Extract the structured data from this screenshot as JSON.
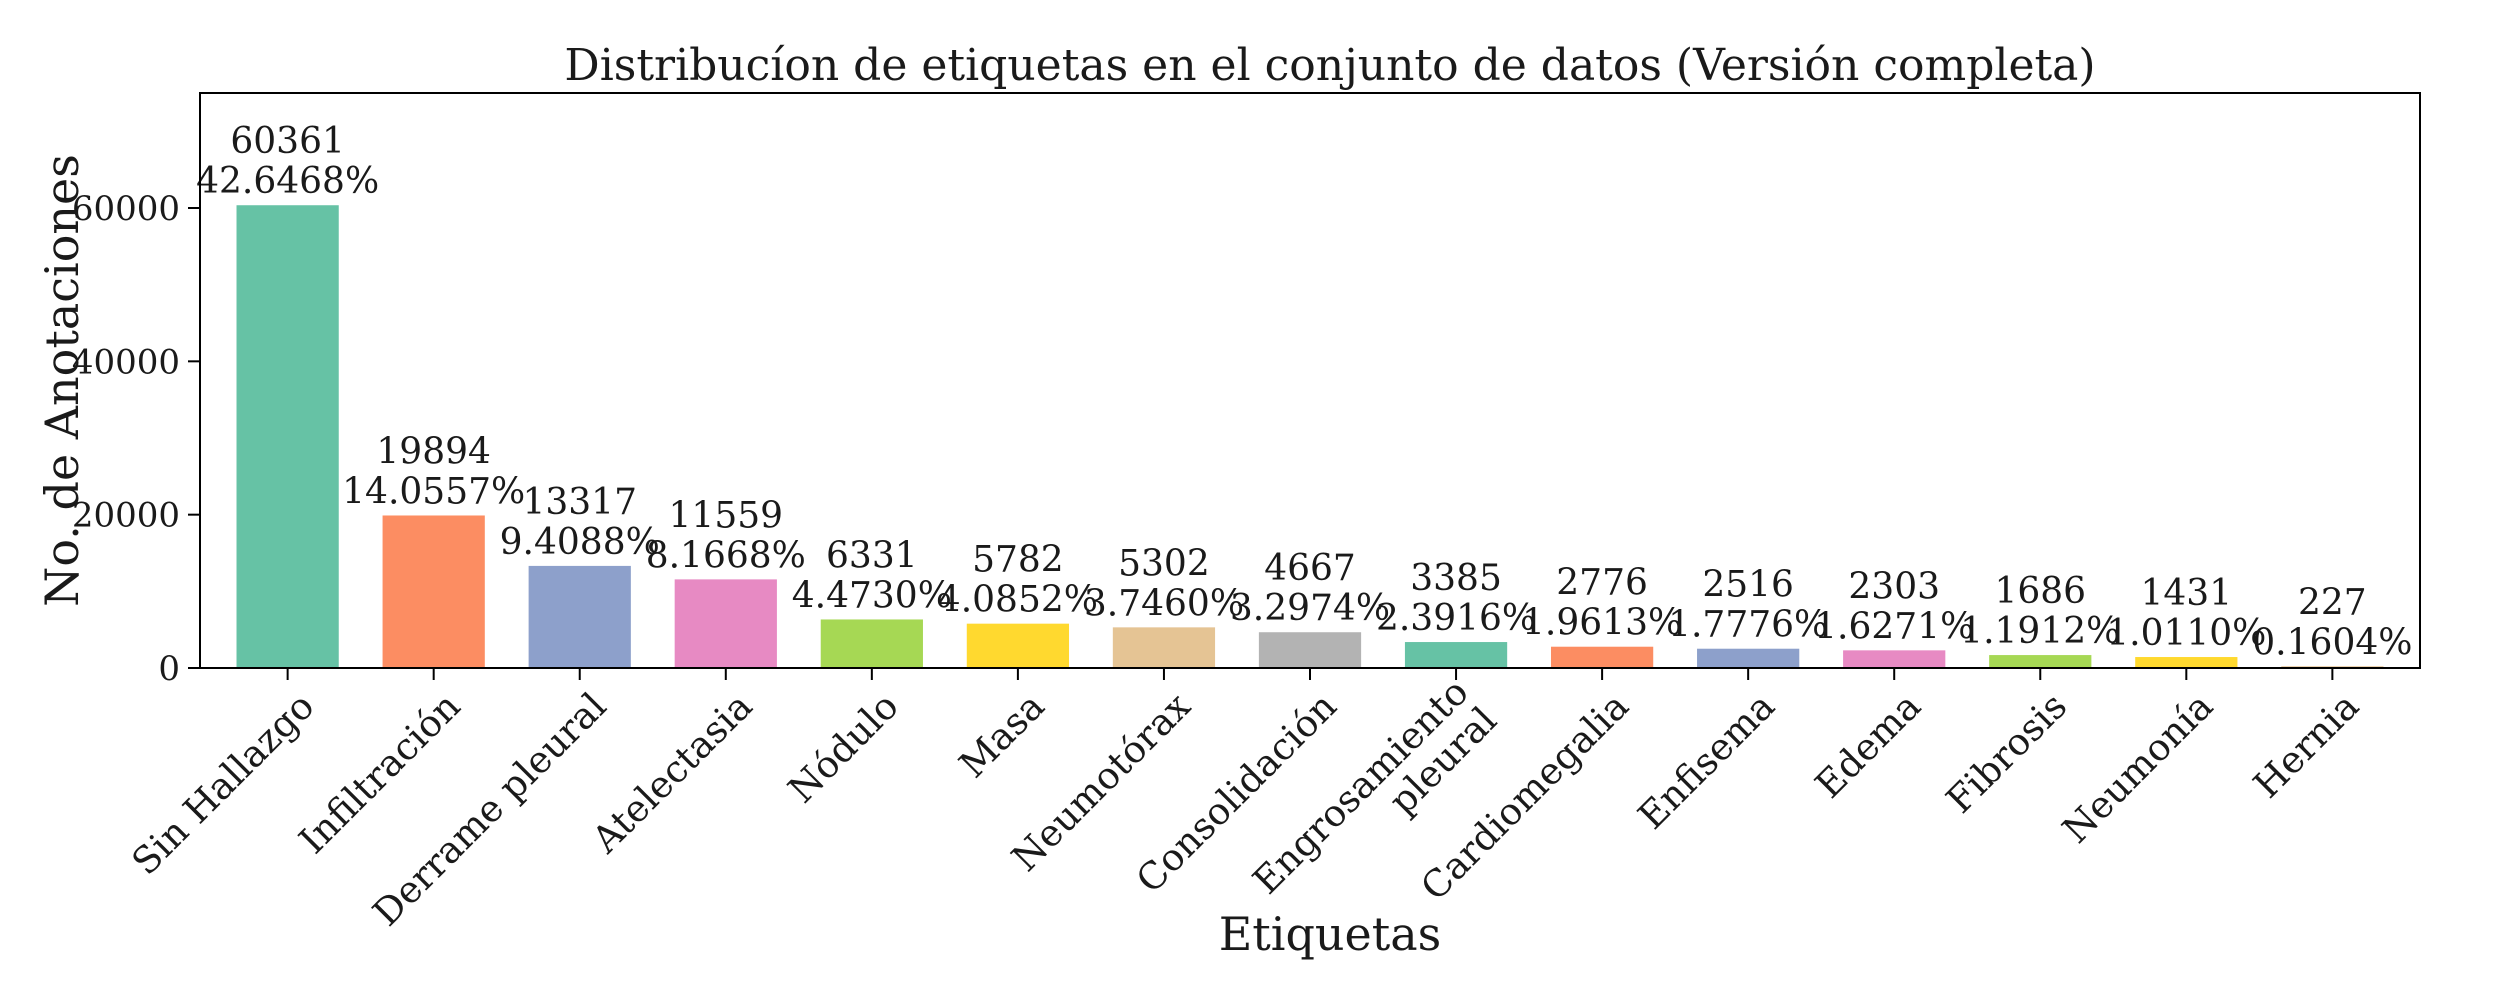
{
  "chart_data": {
    "type": "bar",
    "title": "Distribucíon de etiquetas en el conjunto de datos (Versión completa)",
    "xlabel": "Etiquetas",
    "ylabel": "No. de Anotaciones",
    "ylim": [
      0,
      75000
    ],
    "yticks": [
      0,
      20000,
      40000,
      60000
    ],
    "ytick_labels": [
      "0",
      "20000",
      "40000",
      "60000"
    ],
    "grid": false,
    "categories": [
      "Sin Hallazgo",
      "Infiltración",
      "Derrame pleural",
      "Atelectasia",
      "Nódulo",
      "Masa",
      "Neumotórax",
      "Consolidación",
      "Engrosamiento pleural",
      "Cardiomegalia",
      "Enfisema",
      "Edema",
      "Fibrosis",
      "Neumonía",
      "Hernia"
    ],
    "category_lines": [
      [
        "Sin Hallazgo"
      ],
      [
        "Infiltración"
      ],
      [
        "Derrame pleural"
      ],
      [
        "Atelectasia"
      ],
      [
        "Nódulo"
      ],
      [
        "Masa"
      ],
      [
        "Neumotórax"
      ],
      [
        "Consolidación"
      ],
      [
        "Engrosamiento",
        "pleural"
      ],
      [
        "Cardiomegalia"
      ],
      [
        "Enfisema"
      ],
      [
        "Edema"
      ],
      [
        "Fibrosis"
      ],
      [
        "Neumonía"
      ],
      [
        "Hernia"
      ]
    ],
    "values": [
      60361,
      19894,
      13317,
      11559,
      6331,
      5782,
      5302,
      4667,
      3385,
      2776,
      2516,
      2303,
      1686,
      1431,
      227
    ],
    "percent_labels": [
      "42.6468%",
      "14.0557%",
      "9.4088%",
      "8.1668%",
      "4.4730%",
      "4.0852%",
      "3.7460%",
      "3.2974%",
      "2.3916%",
      "1.9613%",
      "1.7776%",
      "1.6271%",
      "1.1912%",
      "1.0110%",
      "0.1604%"
    ],
    "colors": [
      "#66c2a5",
      "#fc8d62",
      "#8da0cb",
      "#e78ac3",
      "#a6d854",
      "#ffd92f",
      "#e5c494",
      "#b3b3b3",
      "#66c2a5",
      "#fc8d62",
      "#8da0cb",
      "#e78ac3",
      "#a6d854",
      "#ffd92f",
      "#e5c494"
    ]
  }
}
